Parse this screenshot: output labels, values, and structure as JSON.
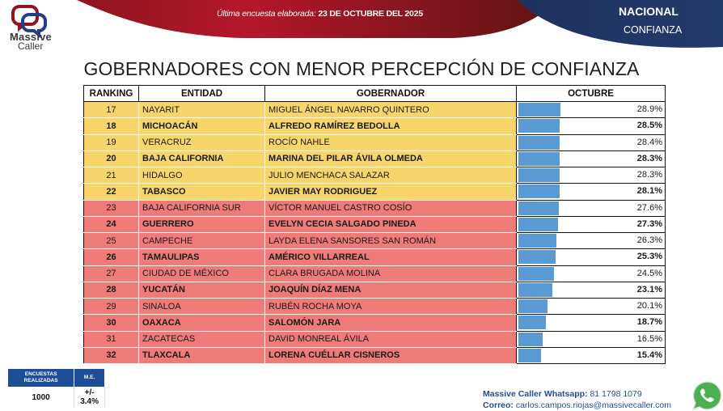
{
  "header": {
    "logo_line1": "Massive",
    "logo_line2": "Caller",
    "survey_label": "Última encuesta elaborada:",
    "survey_date": "23 DE OCTUBRE DEL 2025",
    "scope": "NACIONAL",
    "topic": "CONFIANZA",
    "colors": {
      "red": "#b5172b",
      "dark_red": "#6b1515",
      "navy": "#1f3260"
    }
  },
  "title": "GOBERNADORES CON MENOR PERCEPCIÓN DE CONFIANZA",
  "table": {
    "columns": [
      "RANKING",
      "ENTIDAD",
      "GOBERNADOR",
      "OCTUBRE"
    ],
    "rows": [
      {
        "rank": "17",
        "entidad": "NAYARIT",
        "gobernador": "MIGUEL ÁNGEL NAVARRO QUINTERO",
        "octubre": "28.9%",
        "value": 28.9,
        "band": "yellow",
        "bold": false
      },
      {
        "rank": "18",
        "entidad": "MICHOACÁN",
        "gobernador": "ALFREDO RAMÍREZ BEDOLLA",
        "octubre": "28.5%",
        "value": 28.5,
        "band": "yellow",
        "bold": true
      },
      {
        "rank": "19",
        "entidad": "VERACRUZ",
        "gobernador": "ROCÍO NAHLE",
        "octubre": "28.4%",
        "value": 28.4,
        "band": "yellow",
        "bold": false
      },
      {
        "rank": "20",
        "entidad": "BAJA CALIFORNIA",
        "gobernador": "MARINA DEL PILAR ÁVILA OLMEDA",
        "octubre": "28.3%",
        "value": 28.3,
        "band": "yellow",
        "bold": true
      },
      {
        "rank": "21",
        "entidad": "HIDALGO",
        "gobernador": "JULIO MENCHACA SALAZAR",
        "octubre": "28.3%",
        "value": 28.3,
        "band": "yellow",
        "bold": false
      },
      {
        "rank": "22",
        "entidad": "TABASCO",
        "gobernador": "JAVIER MAY RODRIGUEZ",
        "octubre": "28.1%",
        "value": 28.1,
        "band": "yellow",
        "bold": true
      },
      {
        "rank": "23",
        "entidad": "BAJA CALIFORNIA SUR",
        "gobernador": "VÍCTOR MANUEL CASTRO COSÍO",
        "octubre": "27.6%",
        "value": 27.6,
        "band": "red",
        "bold": false
      },
      {
        "rank": "24",
        "entidad": "GUERRERO",
        "gobernador": "EVELYN CECIA SALGADO PINEDA",
        "octubre": "27.3%",
        "value": 27.3,
        "band": "red",
        "bold": true
      },
      {
        "rank": "25",
        "entidad": "CAMPECHE",
        "gobernador": "LAYDA ELENA SANSORES SAN ROMÁN",
        "octubre": "26.3%",
        "value": 26.3,
        "band": "red",
        "bold": false
      },
      {
        "rank": "26",
        "entidad": "TAMAULIPAS",
        "gobernador": "AMÉRICO VILLARREAL",
        "octubre": "25.3%",
        "value": 25.3,
        "band": "red",
        "bold": true
      },
      {
        "rank": "27",
        "entidad": "CIUDAD DE MÉXICO",
        "gobernador": "CLARA BRUGADA MOLINA",
        "octubre": "24.5%",
        "value": 24.5,
        "band": "red",
        "bold": false
      },
      {
        "rank": "28",
        "entidad": "YUCATÁN",
        "gobernador": "JOAQUÍN DÍAZ MENA",
        "octubre": "23.1%",
        "value": 23.1,
        "band": "red",
        "bold": true
      },
      {
        "rank": "29",
        "entidad": "SINALOA",
        "gobernador": "RUBÉN ROCHA MOYA",
        "octubre": "20.1%",
        "value": 20.1,
        "band": "red",
        "bold": false
      },
      {
        "rank": "30",
        "entidad": "OAXACA",
        "gobernador": "SALOMÓN JARA",
        "octubre": "18.7%",
        "value": 18.7,
        "band": "red",
        "bold": true
      },
      {
        "rank": "31",
        "entidad": "ZACATECAS",
        "gobernador": "DAVID MONREAL ÁVILA",
        "octubre": "16.5%",
        "value": 16.5,
        "band": "red",
        "bold": false
      },
      {
        "rank": "32",
        "entidad": "TLAXCALA",
        "gobernador": "LORENA CUÉLLAR CISNEROS",
        "octubre": "15.4%",
        "value": 15.4,
        "band": "red",
        "bold": true
      }
    ],
    "colors": {
      "yellow": "#f8d56b",
      "red": "#ef7b78",
      "bar": "#5b9bd5"
    }
  },
  "stats": {
    "surveys_label": "ENCUESTAS REALIZADAS",
    "me_label": "M.E.",
    "surveys_value": "1000",
    "me_value": "+/- 3.4%"
  },
  "contact": {
    "whatsapp_label": "Massive Caller Whatsapp:",
    "whatsapp_number": "81 1798 1079",
    "email_label": "Correo:",
    "email": "carlos.campos.riojas@massivecaller.com"
  },
  "chart_data": {
    "type": "bar",
    "title": "GOBERNADORES CON MENOR PERCEPCIÓN DE CONFIANZA",
    "subtitle": "NACIONAL - CONFIANZA | Última encuesta elaborada: 23 DE OCTUBRE DEL 2025",
    "orientation": "horizontal",
    "xlabel": "",
    "ylabel": "",
    "series_name": "OCTUBRE",
    "categories": [
      "NAYARIT",
      "MICHOACÁN",
      "VERACRUZ",
      "BAJA CALIFORNIA",
      "HIDALGO",
      "TABASCO",
      "BAJA CALIFORNIA SUR",
      "GUERRERO",
      "CAMPECHE",
      "TAMAULIPAS",
      "CIUDAD DE MÉXICO",
      "YUCATÁN",
      "SINALOA",
      "OAXACA",
      "ZACATECAS",
      "TLAXCALA"
    ],
    "ranks": [
      17,
      18,
      19,
      20,
      21,
      22,
      23,
      24,
      25,
      26,
      27,
      28,
      29,
      30,
      31,
      32
    ],
    "values": [
      28.9,
      28.5,
      28.4,
      28.3,
      28.3,
      28.1,
      27.6,
      27.3,
      26.3,
      25.3,
      24.5,
      23.1,
      20.1,
      18.7,
      16.5,
      15.4
    ],
    "unit": "%",
    "grid": false,
    "legend": null
  }
}
